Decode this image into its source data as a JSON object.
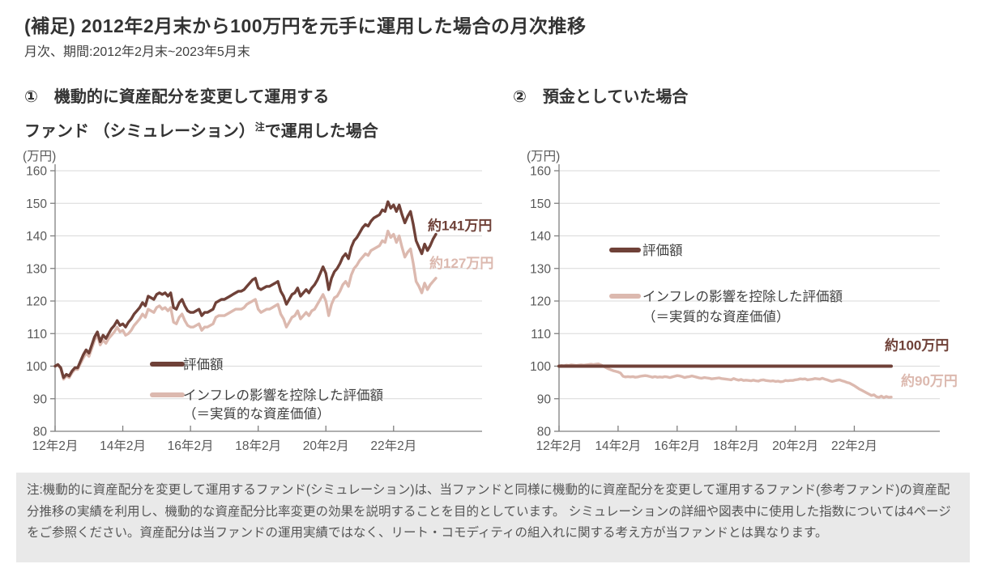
{
  "page": {
    "title": "(補足) 2012年2月末から100万円を元手に運用した場合の月次推移",
    "subtitle": "月次、期間:2012年2月末~2023年5月末",
    "note": "注:機動的に資産配分を変更して運用するファンド(シミュレーション)は、当ファンドと同様に機動的に資産配分を変更して運用するファンド(参考ファンド)の資産配分推移の実績を利用し、機動的な資産配分比率変更の効果を説明することを目的としています。 シミュレーションの詳細や図表中に使用した指数については4ページをご参照ください。資産配分は当ファンドの運用実績ではなく、リート・コモディティの組入れに関する考え方が当ファンドとは異なります。"
  },
  "headings": {
    "left_line1": "①　機動的に資産配分を変更して運用する",
    "left_line2_pre": "ファンド （シミュレーション）",
    "left_line2_sup": "注",
    "left_line2_post": "で運用した場合",
    "right": "②　預金としていた場合"
  },
  "colors": {
    "evaluation": "#6F4138",
    "real_value": "#DCB9AF",
    "grid": "#D9D9D9",
    "axis": "#7F7F7F",
    "tick_text": "#595959",
    "legend_text": "#404040",
    "heading_text": "#333333",
    "note_bg": "#E9E9E9",
    "note_text": "#555555"
  },
  "chart_data": [
    {
      "id": "left",
      "type": "line",
      "title": "① 機動的に資産配分を変更して運用するファンド（シミュレーション）注で運用した場合",
      "ylabel": "(万円)",
      "ylim": [
        80,
        160
      ],
      "yticks": [
        80,
        90,
        100,
        110,
        120,
        130,
        140,
        150,
        160
      ],
      "x_tick_labels": [
        "12年2月",
        "14年2月",
        "16年2月",
        "18年2月",
        "20年2月",
        "22年2月"
      ],
      "x_tick_months": [
        0,
        24,
        48,
        72,
        96,
        120
      ],
      "x_months_total": 135,
      "x_start": "2012年2月末",
      "x_end": "2023年5月末",
      "grid": true,
      "legend_position": "inside-bottom-left",
      "series": [
        {
          "name": "評価額",
          "color_key": "evaluation",
          "end_label": "約141万円",
          "values": [
            100,
            100.5,
            99.5,
            96.5,
            97.5,
            97,
            98.5,
            99.5,
            99.5,
            101.5,
            103.5,
            105,
            104,
            106.5,
            109,
            110.5,
            107.5,
            109.5,
            108.5,
            110,
            111.5,
            112.5,
            114,
            112.5,
            113,
            112,
            113.5,
            114.5,
            116,
            117,
            118,
            119.5,
            118.5,
            121.5,
            121,
            120.5,
            122,
            122.5,
            122,
            122.5,
            121.5,
            122.5,
            118,
            117.5,
            119.5,
            120.5,
            118.5,
            117,
            116.5,
            116.5,
            117,
            117.5,
            115.5,
            116.5,
            116.5,
            117,
            117.5,
            119.5,
            120,
            120.5,
            120.5,
            121,
            121.5,
            122,
            122.5,
            123,
            123,
            123.5,
            124.5,
            125.5,
            126.5,
            127,
            124,
            123.5,
            124,
            124.5,
            124.5,
            125,
            125.5,
            126,
            123,
            121.5,
            119,
            120.5,
            122,
            122.5,
            124,
            121.5,
            122.5,
            123.5,
            122.5,
            124,
            125,
            126.5,
            128.5,
            130.5,
            128.5,
            123.5,
            127,
            129,
            130,
            131.5,
            133.5,
            134.5,
            133,
            136.5,
            138.5,
            139.5,
            141,
            142.5,
            143.5,
            143,
            144.5,
            145.5,
            146,
            146.5,
            148,
            147.5,
            150.5,
            148.5,
            149.5,
            147.5,
            149.5,
            146.5,
            144,
            146,
            147.5,
            143.5,
            138.5,
            136.5,
            134.5,
            137.5,
            135.5,
            137,
            139,
            140.5
          ]
        },
        {
          "name": "インフレの影響を控除した評価額",
          "name2": "（＝実質的な資産価値）",
          "color_key": "real_value",
          "end_label": "約127万円",
          "values": [
            100,
            100.4,
            99.3,
            96,
            97,
            96.5,
            98,
            99,
            99,
            100.8,
            102.5,
            104,
            103,
            105.5,
            108,
            109.5,
            106.5,
            108,
            107,
            108.5,
            109.5,
            110.5,
            112,
            110.5,
            111,
            109.5,
            110,
            111,
            112.5,
            113.5,
            114.5,
            116,
            115,
            117.5,
            117,
            116.5,
            118,
            118.5,
            117.5,
            118,
            117,
            118,
            113.5,
            113,
            115,
            116,
            114,
            112.5,
            112,
            112,
            112.5,
            113,
            111,
            112,
            112,
            112.5,
            113,
            115,
            115.5,
            115.5,
            115.5,
            116,
            116.5,
            117,
            117.5,
            117.5,
            117.5,
            118,
            119,
            119.5,
            120,
            120.5,
            117.5,
            116.5,
            117,
            117.5,
            117.5,
            118,
            118.5,
            119,
            116,
            114.5,
            112,
            113.5,
            115,
            115.5,
            117,
            114.5,
            115.5,
            116.5,
            115.5,
            117,
            117.5,
            119,
            120.5,
            122,
            120,
            115.5,
            119,
            121,
            121.5,
            123,
            125,
            126,
            124.5,
            128,
            130,
            131,
            132.5,
            133.5,
            134.5,
            134,
            135.5,
            136,
            136.5,
            137,
            138.5,
            138,
            141.5,
            139.5,
            140.5,
            138,
            140,
            136.5,
            133.5,
            135,
            136,
            131.5,
            126,
            124.5,
            122.5,
            125.5,
            123.5,
            125,
            126,
            127
          ]
        }
      ]
    },
    {
      "id": "right",
      "type": "line",
      "title": "② 預金としていた場合",
      "ylabel": "(万円)",
      "ylim": [
        80,
        160
      ],
      "yticks": [
        80,
        90,
        100,
        110,
        120,
        130,
        140,
        150,
        160
      ],
      "x_tick_labels": [
        "12年2月",
        "14年2月",
        "16年2月",
        "18年2月",
        "20年2月",
        "22年2月"
      ],
      "x_tick_months": [
        0,
        24,
        48,
        72,
        96,
        120
      ],
      "x_months_total": 135,
      "x_start": "2012年2月末",
      "x_end": "2023年5月末",
      "grid": true,
      "legend_position": "inside-middle-left",
      "series": [
        {
          "name": "評価額",
          "color_key": "evaluation",
          "end_label": "約100万円",
          "width": 4,
          "values": [
            100,
            100,
            100,
            100,
            100,
            100,
            100,
            100,
            100,
            100,
            100,
            100,
            100,
            100,
            100,
            100,
            100,
            100,
            100,
            100,
            100,
            100,
            100,
            100,
            100,
            100,
            100,
            100,
            100,
            100,
            100,
            100,
            100,
            100,
            100,
            100,
            100,
            100,
            100,
            100,
            100,
            100,
            100,
            100,
            100,
            100,
            100,
            100,
            100,
            100,
            100,
            100,
            100,
            100,
            100,
            100,
            100,
            100,
            100,
            100,
            100,
            100,
            100,
            100,
            100,
            100,
            100,
            100,
            100,
            100,
            100,
            100,
            100,
            100,
            100,
            100,
            100,
            100,
            100,
            100,
            100,
            100,
            100,
            100,
            100,
            100,
            100,
            100,
            100,
            100,
            100,
            100,
            100,
            100,
            100,
            100,
            100,
            100,
            100,
            100,
            100,
            100,
            100,
            100,
            100,
            100,
            100,
            100,
            100,
            100,
            100,
            100,
            100,
            100,
            100,
            100,
            100,
            100,
            100,
            100,
            100,
            100,
            100,
            100,
            100,
            100,
            100,
            100,
            100,
            100,
            100,
            100,
            100,
            100,
            100,
            100
          ]
        },
        {
          "name": "インフレの影響を控除した評価額",
          "name2": "（＝実質的な資産価値）",
          "color_key": "real_value",
          "end_label": "約90万円",
          "values": [
            100,
            100.2,
            100.1,
            100.3,
            100.2,
            100.4,
            100.3,
            100.2,
            100.3,
            100.4,
            100.3,
            100.4,
            100.5,
            100.6,
            100.5,
            100.6,
            100.7,
            100.4,
            100,
            99.6,
            99.2,
            98.9,
            98.6,
            98.4,
            98.2,
            97.9,
            96.9,
            96.7,
            96.8,
            96.7,
            96.8,
            96.6,
            96.7,
            96.9,
            97,
            97.1,
            97,
            96.8,
            96.6,
            96.8,
            96.6,
            96.7,
            96.6,
            96.8,
            96.7,
            96.5,
            96.7,
            96.9,
            97.1,
            97,
            96.8,
            96.5,
            96.7,
            96.8,
            97,
            96.8,
            96.6,
            96.4,
            96.3,
            96.5,
            96.4,
            96.3,
            96.1,
            96.2,
            96.3,
            96.4,
            96.2,
            96.1,
            96,
            95.9,
            95.8,
            96.2,
            95.9,
            95.7,
            95.9,
            95.6,
            95.7,
            95.6,
            95.5,
            95.7,
            95.5,
            95.4,
            95.7,
            95.8,
            95.6,
            95.5,
            95.4,
            95.5,
            95.3,
            95.4,
            95.2,
            95.3,
            95.6,
            95.5,
            95.6,
            95.6,
            95.8,
            95.9,
            96.1,
            96,
            96.1,
            95.8,
            95.9,
            96,
            96.2,
            96.1,
            96,
            96.3,
            96,
            95.8,
            95.5,
            95.3,
            95.5,
            95.7,
            95.8,
            95.5,
            95.3,
            95,
            94.8,
            94.4,
            94,
            93.5,
            93,
            92.6,
            92.2,
            91.8,
            91.4,
            91,
            91.2,
            90.6,
            90.4,
            90.8,
            90.3,
            90.7,
            90.4,
            90.5
          ]
        }
      ]
    }
  ]
}
